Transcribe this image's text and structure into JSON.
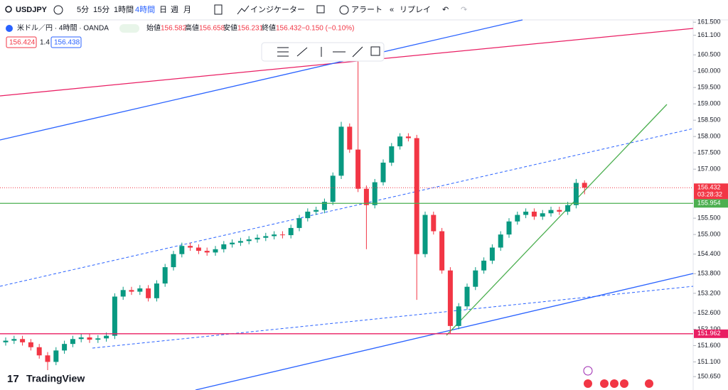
{
  "toolbar": {
    "symbol": "USDJPY",
    "intervals": [
      "5分",
      "15分",
      "1時間",
      "4時間",
      "日",
      "週",
      "月"
    ],
    "indicators": "インジケーター",
    "alert": "アラート",
    "replay": "リプレイ"
  },
  "legend": {
    "title": "米ドル／円 · 4時間 · OANDA",
    "open_label": "始値",
    "high_label": "高値",
    "low_label": "安値",
    "close_label": "終値",
    "change": "−0.150 (−0.10%)",
    "bid": "156.424",
    "spread": "1.4",
    "ask": "156.438"
  },
  "countdown": "03:28:32",
  "logo": "TradingView",
  "chart_data": {
    "type": "candlestick",
    "up_color": "#089981",
    "down_color": "#f23645",
    "open": [
      151.7,
      151.75,
      151.8,
      151.7,
      151.55,
      151.3,
      151.1,
      151.45,
      151.65,
      151.8,
      151.85,
      151.78,
      151.82,
      151.9,
      153.1,
      153.3,
      153.25,
      153.35,
      153.05,
      153.5,
      154.0,
      154.4,
      154.65,
      154.6,
      154.5,
      154.45,
      154.55,
      154.7,
      154.75,
      154.8,
      154.85,
      154.9,
      154.95,
      155.0,
      154.98,
      155.2,
      155.5,
      155.7,
      155.75,
      156.0,
      156.8,
      158.3,
      157.6,
      156.4,
      155.9,
      156.6,
      157.2,
      157.7,
      158.0,
      157.95,
      154.4,
      155.6,
      155.1,
      153.9,
      152.2,
      152.8,
      153.4,
      153.9,
      154.2,
      154.6,
      155.0,
      155.4,
      155.6,
      155.7,
      155.55,
      155.65,
      155.75,
      155.7,
      155.9,
      156.582
    ],
    "high": [
      151.85,
      151.9,
      151.9,
      151.8,
      151.65,
      151.4,
      151.55,
      151.75,
      151.9,
      151.95,
      151.95,
      151.92,
      152.0,
      153.2,
      153.4,
      153.4,
      153.45,
      153.45,
      153.6,
      154.1,
      154.5,
      154.75,
      154.75,
      154.7,
      154.6,
      154.65,
      154.8,
      154.85,
      154.9,
      154.95,
      155.0,
      155.05,
      155.1,
      155.1,
      155.3,
      155.6,
      155.8,
      155.85,
      156.1,
      156.9,
      158.45,
      158.4,
      160.33,
      156.5,
      156.7,
      157.3,
      157.8,
      158.1,
      158.1,
      158.05,
      155.7,
      155.7,
      155.2,
      154.0,
      152.9,
      153.5,
      154.0,
      154.3,
      154.7,
      155.1,
      155.5,
      155.7,
      155.8,
      155.8,
      155.75,
      155.85,
      155.85,
      156.0,
      156.7,
      156.658
    ],
    "low": [
      151.6,
      151.65,
      151.6,
      151.45,
      151.2,
      150.85,
      151.0,
      151.35,
      151.55,
      151.7,
      151.68,
      151.68,
      151.72,
      151.8,
      153.0,
      153.15,
      153.15,
      152.95,
      152.95,
      153.4,
      153.9,
      154.3,
      154.5,
      154.4,
      154.35,
      154.35,
      154.45,
      154.6,
      154.65,
      154.7,
      154.75,
      154.8,
      154.85,
      154.88,
      154.88,
      155.1,
      155.4,
      155.6,
      155.65,
      155.9,
      156.7,
      157.5,
      156.3,
      154.55,
      155.8,
      156.5,
      157.1,
      157.6,
      157.85,
      153.0,
      154.3,
      155.0,
      153.8,
      151.96,
      152.1,
      152.7,
      153.3,
      153.8,
      154.1,
      154.5,
      154.9,
      155.3,
      155.5,
      155.45,
      155.45,
      155.55,
      155.6,
      155.6,
      155.8,
      156.231
    ],
    "close": [
      151.75,
      151.8,
      151.7,
      151.55,
      151.3,
      151.1,
      151.45,
      151.65,
      151.8,
      151.85,
      151.78,
      151.82,
      151.9,
      153.1,
      153.3,
      153.25,
      153.35,
      153.05,
      153.5,
      154.0,
      154.4,
      154.65,
      154.6,
      154.5,
      154.45,
      154.55,
      154.7,
      154.75,
      154.8,
      154.85,
      154.9,
      154.95,
      155.0,
      154.98,
      155.2,
      155.5,
      155.7,
      155.75,
      156.0,
      156.8,
      158.3,
      157.6,
      156.4,
      155.9,
      156.6,
      157.2,
      157.7,
      158.0,
      157.95,
      154.4,
      155.6,
      155.1,
      153.9,
      152.2,
      152.8,
      153.4,
      153.9,
      154.2,
      154.6,
      155.0,
      155.4,
      155.6,
      155.7,
      155.55,
      155.65,
      155.75,
      155.7,
      155.9,
      156.58,
      156.432
    ],
    "ylim": [
      150.24,
      161.57
    ],
    "yticks": [
      {
        "value": 161.5,
        "label": "161.500"
      },
      {
        "value": 161.1,
        "label": "161.100"
      },
      {
        "value": 160.5,
        "label": "160.500"
      },
      {
        "value": 160,
        "label": "160.000"
      },
      {
        "value": 159.5,
        "label": "159.500"
      },
      {
        "value": 159,
        "label": "159.000"
      },
      {
        "value": 158.5,
        "label": "158.500"
      },
      {
        "value": 158,
        "label": "158.000"
      },
      {
        "value": 157.5,
        "label": "157.500"
      },
      {
        "value": 157,
        "label": "157.000"
      },
      {
        "value": 155.5,
        "label": "155.500"
      },
      {
        "value": 155,
        "label": "155.000"
      },
      {
        "value": 154.4,
        "label": "154.400"
      },
      {
        "value": 153.8,
        "label": "153.800"
      },
      {
        "value": 153.2,
        "label": "153.200"
      },
      {
        "value": 152.6,
        "label": "152.600"
      },
      {
        "value": 152.1,
        "label": "152.100"
      },
      {
        "value": 151.6,
        "label": "151.600"
      },
      {
        "value": 151.1,
        "label": "151.100"
      },
      {
        "value": 150.65,
        "label": "150.650"
      }
    ],
    "price_lines": [
      {
        "value": 155.954,
        "color": "#4caf50"
      },
      {
        "value": 151.962,
        "color": "#e91e63"
      }
    ]
  }
}
